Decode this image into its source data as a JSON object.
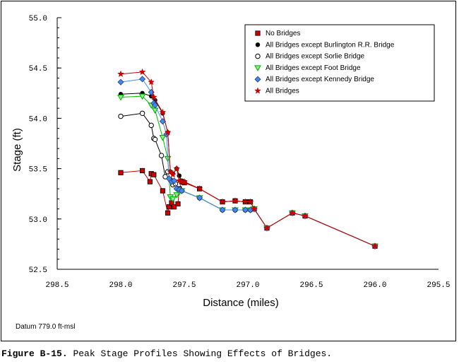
{
  "chart_data": {
    "type": "line",
    "xlabel": "Distance (miles)",
    "ylabel": "Stage (ft)",
    "xlim": [
      298.5,
      295.5
    ],
    "ylim": [
      52.5,
      55.0
    ],
    "x_reversed": true,
    "xticks": [
      "298.5",
      "298.0",
      "297.5",
      "297.0",
      "296.5",
      "296.0",
      "295.5"
    ],
    "yticks": [
      "52.5",
      "53.0",
      "53.5",
      "54.0",
      "54.5",
      "55.0"
    ],
    "legend_position": "top-right",
    "series": [
      {
        "name": "No Bridges",
        "color": "#cc0000",
        "marker": "square",
        "points": [
          [
            298.0,
            53.46
          ],
          [
            297.83,
            53.48
          ],
          [
            297.77,
            53.37
          ],
          [
            297.76,
            53.45
          ],
          [
            297.74,
            53.44
          ],
          [
            297.67,
            53.28
          ],
          [
            297.63,
            53.06
          ],
          [
            297.62,
            53.12
          ],
          [
            297.6,
            53.16
          ],
          [
            297.58,
            53.12
          ],
          [
            297.55,
            53.15
          ],
          [
            297.54,
            53.3
          ],
          [
            297.52,
            53.37
          ],
          [
            297.5,
            53.36
          ],
          [
            297.38,
            53.3
          ],
          [
            297.2,
            53.17
          ],
          [
            297.1,
            53.18
          ],
          [
            297.02,
            53.17
          ],
          [
            296.98,
            53.17
          ],
          [
            296.95,
            53.1
          ],
          [
            296.85,
            52.91
          ],
          [
            296.65,
            53.06
          ],
          [
            296.55,
            53.03
          ],
          [
            296.0,
            52.73
          ]
        ]
      },
      {
        "name": "All Bridges except Burlington R.R. Bridge",
        "color": "#000000",
        "marker": "filled-circle",
        "points": [
          [
            298.0,
            54.24
          ],
          [
            297.83,
            54.25
          ],
          [
            297.76,
            54.22
          ],
          [
            297.73,
            54.18
          ],
          [
            297.67,
            54.05
          ],
          [
            297.63,
            53.86
          ],
          [
            297.61,
            53.47
          ],
          [
            297.59,
            53.45
          ],
          [
            297.56,
            53.5
          ],
          [
            297.54,
            53.43
          ],
          [
            297.52,
            53.38
          ],
          [
            297.5,
            53.37
          ],
          [
            297.38,
            53.3
          ],
          [
            297.2,
            53.17
          ],
          [
            297.1,
            53.18
          ],
          [
            297.02,
            53.17
          ],
          [
            296.98,
            53.17
          ],
          [
            296.95,
            53.1
          ],
          [
            296.85,
            52.91
          ],
          [
            296.65,
            53.06
          ],
          [
            296.55,
            53.03
          ],
          [
            296.0,
            52.73
          ]
        ]
      },
      {
        "name": "All Bridges except Sorlie Bridge",
        "color": "#000000",
        "marker": "open-circle",
        "points": [
          [
            298.0,
            54.02
          ],
          [
            297.83,
            54.05
          ],
          [
            297.76,
            53.93
          ],
          [
            297.74,
            53.8
          ],
          [
            297.73,
            53.79
          ],
          [
            297.68,
            53.63
          ],
          [
            297.65,
            53.42
          ],
          [
            297.63,
            53.47
          ],
          [
            297.61,
            53.39
          ],
          [
            297.59,
            53.34
          ],
          [
            297.57,
            53.35
          ],
          [
            297.54,
            53.3
          ],
          [
            297.52,
            53.28
          ],
          [
            297.38,
            53.21
          ],
          [
            297.2,
            53.09
          ],
          [
            297.1,
            53.09
          ],
          [
            297.02,
            53.09
          ],
          [
            296.98,
            53.09
          ],
          [
            296.95,
            53.1
          ],
          [
            296.85,
            52.91
          ],
          [
            296.65,
            53.06
          ],
          [
            296.55,
            53.03
          ],
          [
            296.0,
            52.73
          ]
        ]
      },
      {
        "name": "All Bridges except Foot Bridge",
        "color": "#00bb00",
        "marker": "triangle-down",
        "points": [
          [
            298.0,
            54.21
          ],
          [
            297.83,
            54.22
          ],
          [
            297.76,
            54.13
          ],
          [
            297.73,
            54.08
          ],
          [
            297.67,
            53.81
          ],
          [
            297.63,
            53.6
          ],
          [
            297.61,
            53.22
          ],
          [
            297.59,
            53.2
          ],
          [
            297.56,
            53.24
          ],
          [
            297.54,
            53.27
          ],
          [
            297.52,
            53.28
          ],
          [
            297.38,
            53.21
          ],
          [
            297.2,
            53.09
          ],
          [
            297.1,
            53.09
          ],
          [
            297.02,
            53.09
          ],
          [
            296.98,
            53.09
          ],
          [
            296.95,
            53.1
          ],
          [
            296.85,
            52.91
          ],
          [
            296.65,
            53.06
          ],
          [
            296.55,
            53.03
          ],
          [
            296.0,
            52.73
          ]
        ]
      },
      {
        "name": "All Bridges except Kennedy Bridge",
        "color": "#4488ee",
        "marker": "diamond",
        "points": [
          [
            298.0,
            54.36
          ],
          [
            297.83,
            54.39
          ],
          [
            297.76,
            54.26
          ],
          [
            297.74,
            54.15
          ],
          [
            297.73,
            54.13
          ],
          [
            297.67,
            53.97
          ],
          [
            297.64,
            53.84
          ],
          [
            297.62,
            53.4
          ],
          [
            297.6,
            53.37
          ],
          [
            297.58,
            53.38
          ],
          [
            297.56,
            53.3
          ],
          [
            297.54,
            53.29
          ],
          [
            297.52,
            53.28
          ],
          [
            297.38,
            53.21
          ],
          [
            297.2,
            53.09
          ],
          [
            297.1,
            53.09
          ],
          [
            297.02,
            53.09
          ],
          [
            296.98,
            53.09
          ],
          [
            296.95,
            53.1
          ],
          [
            296.85,
            52.91
          ],
          [
            296.65,
            53.06
          ],
          [
            296.55,
            53.03
          ],
          [
            296.0,
            52.73
          ]
        ]
      },
      {
        "name": "All Bridges",
        "color": "#cc0000",
        "marker": "star",
        "points": [
          [
            298.0,
            54.44
          ],
          [
            297.83,
            54.46
          ],
          [
            297.76,
            54.36
          ],
          [
            297.74,
            54.21
          ],
          [
            297.67,
            54.06
          ],
          [
            297.63,
            53.86
          ],
          [
            297.61,
            53.47
          ],
          [
            297.59,
            53.44
          ],
          [
            297.56,
            53.5
          ],
          [
            297.54,
            53.38
          ],
          [
            297.52,
            53.37
          ],
          [
            297.5,
            53.37
          ],
          [
            297.38,
            53.3
          ],
          [
            297.2,
            53.17
          ],
          [
            297.1,
            53.18
          ],
          [
            297.02,
            53.17
          ],
          [
            296.98,
            53.17
          ],
          [
            296.95,
            53.1
          ],
          [
            296.85,
            52.91
          ],
          [
            296.65,
            53.06
          ],
          [
            296.55,
            53.03
          ],
          [
            296.0,
            52.73
          ]
        ]
      }
    ]
  },
  "notes": {
    "datum": "Datum 779.0 ft-msl"
  },
  "caption": {
    "label": "Figure B-15.",
    "text": "Peak Stage Profiles Showing Effects of Bridges."
  }
}
